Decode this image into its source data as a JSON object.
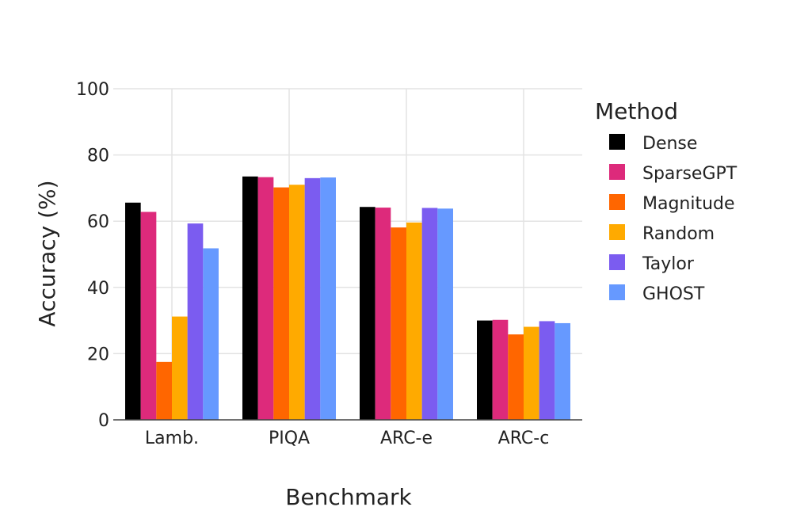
{
  "chart_data": {
    "type": "bar",
    "xlabel": "Benchmark",
    "ylabel": "Accuracy (%)",
    "ylim": [
      0,
      100
    ],
    "yticks": [
      0,
      20,
      40,
      60,
      80,
      100
    ],
    "grid": true,
    "legend_title": "Method",
    "legend_position": "right",
    "categories": [
      "Lamb.",
      "PIQA",
      "ARC-e",
      "ARC-c"
    ],
    "series": [
      {
        "name": "Dense",
        "color": "#000000",
        "values": [
          65.6,
          73.5,
          64.3,
          30.0
        ]
      },
      {
        "name": "SparseGPT",
        "color": "#DD2A7B",
        "values": [
          62.8,
          73.3,
          64.1,
          30.2
        ]
      },
      {
        "name": "Magnitude",
        "color": "#FF6600",
        "values": [
          17.5,
          70.2,
          58.1,
          25.8
        ]
      },
      {
        "name": "Random",
        "color": "#FFAA00",
        "values": [
          31.2,
          71.0,
          59.6,
          28.1
        ]
      },
      {
        "name": "Taylor",
        "color": "#7B5CF0",
        "values": [
          59.3,
          73.0,
          64.0,
          29.8
        ]
      },
      {
        "name": "GHOST",
        "color": "#6699FF",
        "values": [
          51.8,
          73.2,
          63.8,
          29.2
        ]
      }
    ]
  }
}
